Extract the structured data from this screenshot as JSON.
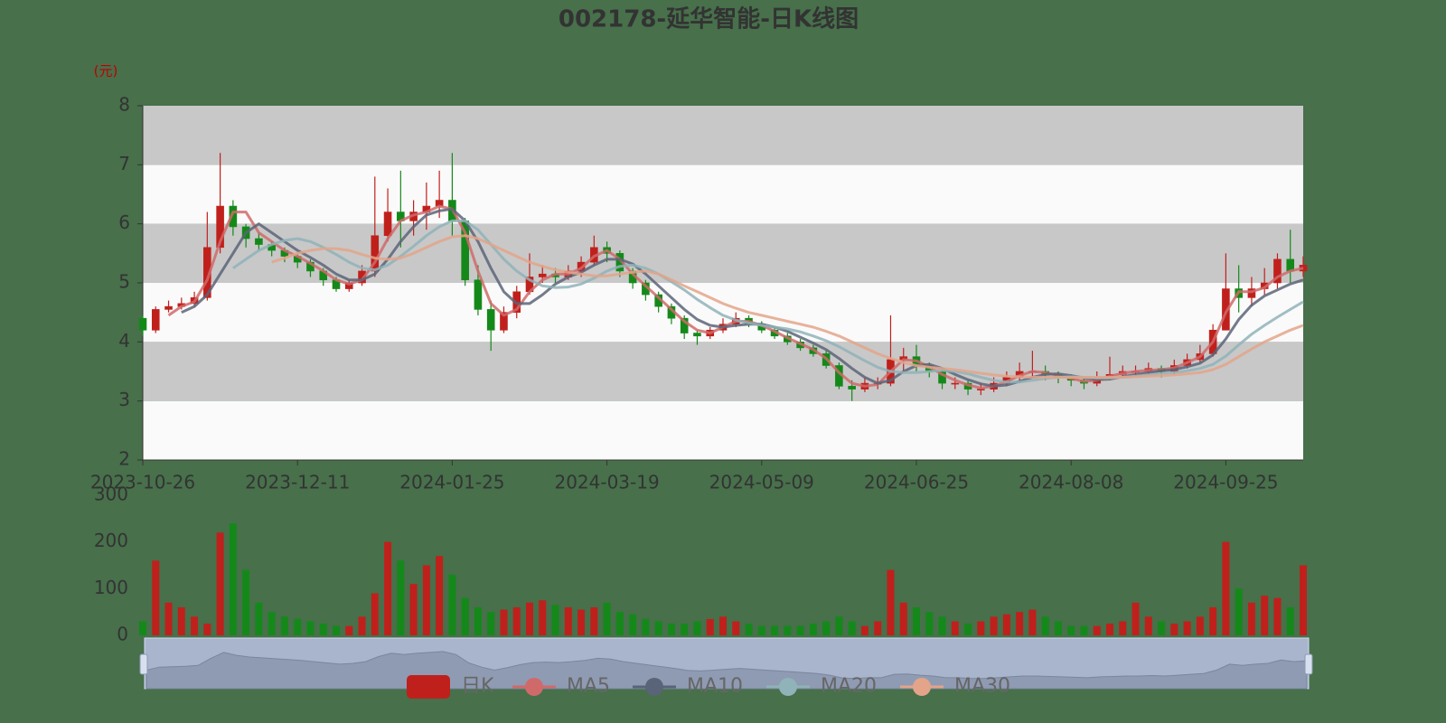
{
  "chart_data": [
    {
      "type": "candlestick",
      "title": "002178-延华智能-日K线图",
      "ylabel": "(元)",
      "categories": [
        "2023-10-26",
        null,
        null,
        null,
        null,
        null,
        null,
        null,
        null,
        null,
        null,
        null,
        "2023-12-11",
        null,
        null,
        null,
        null,
        null,
        null,
        null,
        null,
        null,
        null,
        null,
        "2024-01-25",
        null,
        null,
        null,
        null,
        null,
        null,
        null,
        null,
        null,
        null,
        null,
        "2024-03-19",
        null,
        null,
        null,
        null,
        null,
        null,
        null,
        null,
        null,
        null,
        null,
        "2024-05-09",
        null,
        null,
        null,
        null,
        null,
        null,
        null,
        null,
        null,
        null,
        null,
        "2024-06-25",
        null,
        null,
        null,
        null,
        null,
        null,
        null,
        null,
        null,
        null,
        null,
        "2024-08-08",
        null,
        null,
        null,
        null,
        null,
        null,
        null,
        null,
        null,
        null,
        null,
        "2024-09-25",
        null,
        null,
        null,
        null,
        null,
        null
      ],
      "ylim": [
        2,
        8
      ],
      "yticks": [
        2,
        3,
        4,
        5,
        6,
        7,
        8
      ],
      "split_area": true,
      "split_area_colors": [
        "#fafafa",
        "#c8c8c8"
      ],
      "legend": "bottom",
      "series": [
        {
          "name": "日K",
          "type": "candlestick",
          "up_color": "#c0201c",
          "down_color": "#14891a",
          "open": [
            4.4,
            4.2,
            4.55,
            4.6,
            4.65,
            4.75,
            5.6,
            6.3,
            5.95,
            5.75,
            5.65,
            5.55,
            5.45,
            5.35,
            5.2,
            5.05,
            4.9,
            5.0,
            5.2,
            5.8,
            6.2,
            6.05,
            6.2,
            6.3,
            6.4,
            6.05,
            5.05,
            4.55,
            4.2,
            4.5,
            4.85,
            5.1,
            5.15,
            5.1,
            5.2,
            5.35,
            5.6,
            5.5,
            5.2,
            5.0,
            4.8,
            4.6,
            4.4,
            4.15,
            4.1,
            4.2,
            4.3,
            4.4,
            4.3,
            4.2,
            4.1,
            4.0,
            3.9,
            3.8,
            3.6,
            3.25,
            3.2,
            3.3,
            3.3,
            3.7,
            3.75,
            3.6,
            3.5,
            3.3,
            3.3,
            3.2,
            3.2,
            3.3,
            3.4,
            3.5,
            3.5,
            3.45,
            3.4,
            3.35,
            3.3,
            3.4,
            3.45,
            3.5,
            3.5,
            3.55,
            3.5,
            3.6,
            3.7,
            3.8,
            4.2,
            4.9,
            4.75,
            4.9,
            5.0,
            5.4,
            5.2
          ],
          "close": [
            4.2,
            4.55,
            4.6,
            4.65,
            4.75,
            5.6,
            6.3,
            5.95,
            5.75,
            5.65,
            5.55,
            5.45,
            5.35,
            5.2,
            5.05,
            4.9,
            5.0,
            5.2,
            5.8,
            6.2,
            6.05,
            6.2,
            6.3,
            6.4,
            6.05,
            5.05,
            4.55,
            4.2,
            4.5,
            4.85,
            5.1,
            5.15,
            5.1,
            5.2,
            5.35,
            5.6,
            5.5,
            5.2,
            5.0,
            4.8,
            4.6,
            4.4,
            4.15,
            4.1,
            4.2,
            4.3,
            4.4,
            4.3,
            4.2,
            4.1,
            4.0,
            3.9,
            3.8,
            3.6,
            3.25,
            3.2,
            3.3,
            3.3,
            3.7,
            3.75,
            3.6,
            3.5,
            3.3,
            3.3,
            3.2,
            3.2,
            3.3,
            3.4,
            3.5,
            3.5,
            3.45,
            3.4,
            3.35,
            3.3,
            3.4,
            3.45,
            3.5,
            3.5,
            3.55,
            3.5,
            3.6,
            3.7,
            3.8,
            4.2,
            4.9,
            4.75,
            4.9,
            5.0,
            5.4,
            5.2,
            5.3
          ],
          "high": [
            4.45,
            4.6,
            4.7,
            4.75,
            4.85,
            6.2,
            7.2,
            6.4,
            6.0,
            5.85,
            5.7,
            5.6,
            5.5,
            5.4,
            5.25,
            5.1,
            5.05,
            5.3,
            6.8,
            6.6,
            6.9,
            6.4,
            6.7,
            6.9,
            7.2,
            6.1,
            5.3,
            4.7,
            4.6,
            4.95,
            5.5,
            5.3,
            5.25,
            5.3,
            5.45,
            5.8,
            5.7,
            5.55,
            5.25,
            5.05,
            4.85,
            4.65,
            4.45,
            4.2,
            4.25,
            4.4,
            4.5,
            4.45,
            4.35,
            4.25,
            4.15,
            4.05,
            3.95,
            3.85,
            3.65,
            3.35,
            3.4,
            3.4,
            4.45,
            3.9,
            3.95,
            3.65,
            3.55,
            3.4,
            3.35,
            3.3,
            3.4,
            3.5,
            3.65,
            3.85,
            3.6,
            3.5,
            3.45,
            3.4,
            3.5,
            3.75,
            3.6,
            3.6,
            3.65,
            3.6,
            3.7,
            3.8,
            3.95,
            4.3,
            5.5,
            5.3,
            5.1,
            5.25,
            5.5,
            5.9,
            5.45
          ],
          "low": [
            4.1,
            4.15,
            4.5,
            4.55,
            4.6,
            4.7,
            5.5,
            5.8,
            5.6,
            5.55,
            5.45,
            5.35,
            5.25,
            5.1,
            4.95,
            4.85,
            4.85,
            4.95,
            5.1,
            5.7,
            5.6,
            5.8,
            5.9,
            6.1,
            5.8,
            4.95,
            4.45,
            3.85,
            4.15,
            4.4,
            4.8,
            5.0,
            5.0,
            5.05,
            5.1,
            5.3,
            5.35,
            5.1,
            4.9,
            4.7,
            4.5,
            4.3,
            4.05,
            3.95,
            4.05,
            4.15,
            4.25,
            4.25,
            4.15,
            4.05,
            3.95,
            3.85,
            3.75,
            3.55,
            3.2,
            3.0,
            3.15,
            3.2,
            3.25,
            3.5,
            3.5,
            3.4,
            3.2,
            3.2,
            3.1,
            3.1,
            3.15,
            3.25,
            3.35,
            3.4,
            3.35,
            3.3,
            3.25,
            3.2,
            3.25,
            3.35,
            3.4,
            3.4,
            3.45,
            3.4,
            3.45,
            3.55,
            3.65,
            3.75,
            4.2,
            4.5,
            4.6,
            4.8,
            4.9,
            5.0,
            5.1
          ]
        },
        {
          "name": "MA5",
          "type": "line",
          "color": "#d06a6a",
          "values": [
            null,
            null,
            4.45,
            4.6,
            4.68,
            5.05,
            5.7,
            6.2,
            6.2,
            5.85,
            5.7,
            5.55,
            5.45,
            5.33,
            5.2,
            5.05,
            4.98,
            5.05,
            5.35,
            5.75,
            6.05,
            6.15,
            6.2,
            6.3,
            6.25,
            5.85,
            5.2,
            4.65,
            4.45,
            4.55,
            4.85,
            5.05,
            5.15,
            5.15,
            5.25,
            5.45,
            5.55,
            5.4,
            5.15,
            4.95,
            4.75,
            4.55,
            4.35,
            4.2,
            4.15,
            4.25,
            4.35,
            4.35,
            4.28,
            4.18,
            4.07,
            3.97,
            3.87,
            3.72,
            3.48,
            3.3,
            3.25,
            3.28,
            3.5,
            3.7,
            3.68,
            3.58,
            3.45,
            3.35,
            3.27,
            3.22,
            3.25,
            3.33,
            3.43,
            3.5,
            3.48,
            3.43,
            3.38,
            3.33,
            3.35,
            3.42,
            3.47,
            3.5,
            3.52,
            3.53,
            3.56,
            3.65,
            3.75,
            4.0,
            4.5,
            4.85,
            4.85,
            4.92,
            5.1,
            5.2,
            5.25
          ]
        },
        {
          "name": "MA10",
          "type": "line",
          "color": "#5a6478",
          "values": [
            null,
            null,
            null,
            4.5,
            4.6,
            4.8,
            5.15,
            5.5,
            5.85,
            6.0,
            5.85,
            5.7,
            5.55,
            5.43,
            5.3,
            5.15,
            5.05,
            5.05,
            5.15,
            5.4,
            5.7,
            5.95,
            6.15,
            6.22,
            6.25,
            6.05,
            5.7,
            5.25,
            4.85,
            4.65,
            4.65,
            4.8,
            4.98,
            5.1,
            5.18,
            5.3,
            5.4,
            5.4,
            5.32,
            5.15,
            4.95,
            4.75,
            4.55,
            4.38,
            4.28,
            4.25,
            4.28,
            4.3,
            4.3,
            4.25,
            4.18,
            4.08,
            3.98,
            3.87,
            3.72,
            3.55,
            3.4,
            3.3,
            3.35,
            3.5,
            3.6,
            3.62,
            3.55,
            3.45,
            3.36,
            3.29,
            3.25,
            3.27,
            3.33,
            3.4,
            3.45,
            3.46,
            3.43,
            3.39,
            3.36,
            3.37,
            3.41,
            3.45,
            3.48,
            3.51,
            3.53,
            3.58,
            3.64,
            3.78,
            4.05,
            4.38,
            4.62,
            4.78,
            4.88,
            4.98,
            5.05
          ]
        },
        {
          "name": "MA20",
          "type": "line",
          "color": "#8fb3b8",
          "values": [
            null,
            null,
            null,
            null,
            null,
            null,
            null,
            5.25,
            5.4,
            5.55,
            5.65,
            5.72,
            5.75,
            5.7,
            5.6,
            5.48,
            5.35,
            5.25,
            5.22,
            5.3,
            5.45,
            5.62,
            5.8,
            5.95,
            6.05,
            6.05,
            5.9,
            5.65,
            5.4,
            5.2,
            5.05,
            4.95,
            4.92,
            4.93,
            4.98,
            5.08,
            5.2,
            5.28,
            5.3,
            5.25,
            5.15,
            5.02,
            4.88,
            4.72,
            4.58,
            4.45,
            4.37,
            4.32,
            4.28,
            4.25,
            4.22,
            4.17,
            4.1,
            4.02,
            3.92,
            3.8,
            3.68,
            3.57,
            3.5,
            3.48,
            3.48,
            3.5,
            3.52,
            3.5,
            3.46,
            3.4,
            3.35,
            3.32,
            3.32,
            3.35,
            3.38,
            3.4,
            3.41,
            3.4,
            3.39,
            3.39,
            3.4,
            3.42,
            3.44,
            3.46,
            3.48,
            3.51,
            3.55,
            3.62,
            3.76,
            3.95,
            4.13,
            4.28,
            4.42,
            4.55,
            4.68
          ]
        },
        {
          "name": "MA30",
          "type": "line",
          "color": "#e3a48a",
          "values": [
            null,
            null,
            null,
            null,
            null,
            null,
            null,
            null,
            null,
            null,
            5.35,
            5.42,
            5.5,
            5.55,
            5.58,
            5.58,
            5.55,
            5.48,
            5.42,
            5.4,
            5.42,
            5.5,
            5.6,
            5.7,
            5.78,
            5.8,
            5.75,
            5.65,
            5.55,
            5.45,
            5.35,
            5.28,
            5.22,
            5.18,
            5.15,
            5.12,
            5.12,
            5.15,
            5.18,
            5.2,
            5.15,
            5.05,
            4.95,
            4.85,
            4.75,
            4.65,
            4.57,
            4.5,
            4.45,
            4.4,
            4.35,
            4.3,
            4.25,
            4.18,
            4.1,
            4.0,
            3.9,
            3.8,
            3.72,
            3.65,
            3.6,
            3.57,
            3.55,
            3.53,
            3.5,
            3.47,
            3.44,
            3.42,
            3.41,
            3.4,
            3.4,
            3.4,
            3.4,
            3.4,
            3.4,
            3.4,
            3.4,
            3.41,
            3.42,
            3.43,
            3.44,
            3.46,
            3.48,
            3.53,
            3.62,
            3.75,
            3.88,
            4.0,
            4.1,
            4.2,
            4.28
          ]
        }
      ]
    },
    {
      "type": "bar",
      "ylim": [
        0,
        300
      ],
      "yticks": [
        0,
        100,
        200,
        300
      ],
      "values": [
        30,
        160,
        70,
        60,
        40,
        25,
        220,
        240,
        140,
        70,
        50,
        40,
        35,
        30,
        25,
        20,
        20,
        40,
        90,
        200,
        160,
        110,
        150,
        170,
        130,
        80,
        60,
        50,
        55,
        60,
        70,
        75,
        65,
        60,
        55,
        60,
        70,
        50,
        45,
        35,
        30,
        25,
        25,
        30,
        35,
        40,
        30,
        25,
        20,
        20,
        20,
        20,
        25,
        30,
        40,
        30,
        20,
        30,
        140,
        70,
        60,
        50,
        40,
        30,
        25,
        30,
        40,
        45,
        50,
        55,
        40,
        30,
        20,
        20,
        20,
        25,
        30,
        70,
        40,
        30,
        25,
        30,
        40,
        60,
        200,
        100,
        70,
        85,
        80,
        60,
        150
      ]
    }
  ]
}
